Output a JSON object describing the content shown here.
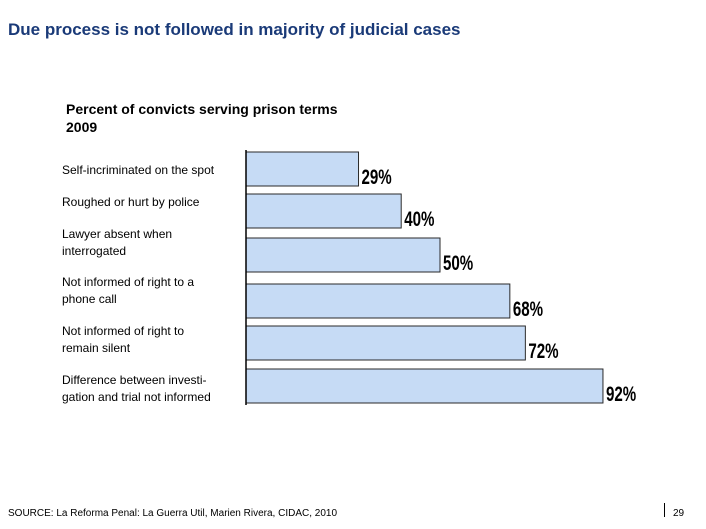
{
  "title": "Due process is not followed in majority of judicial cases",
  "subtitle_lines": [
    "Percent of convicts serving prison terms",
    "2009"
  ],
  "source": "SOURCE: La Reforma Penal: La Guerra Util, Marien Rivera, CIDAC, 2010",
  "page_number": "29",
  "colors": {
    "title": "#1a3a78",
    "bar_fill": "#c6dbf5",
    "bar_stroke": "#2a2a2a"
  },
  "chart_data": {
    "type": "bar",
    "orientation": "horizontal",
    "title": "Percent of convicts serving prison terms 2009",
    "categories": [
      [
        "Self-incriminated on the spot"
      ],
      [
        "Roughed or hurt by police"
      ],
      [
        "Lawyer absent when",
        "interrogated"
      ],
      [
        "Not informed of right to a",
        "phone call"
      ],
      [
        "Not informed of right to",
        "remain silent"
      ],
      [
        "Difference between investi-",
        "gation and trial not informed"
      ]
    ],
    "values": [
      29,
      40,
      50,
      68,
      72,
      92
    ],
    "data_labels": [
      "29%",
      "40%",
      "50%",
      "68%",
      "72%",
      "92%"
    ],
    "xlim": [
      0,
      100
    ],
    "grid": false,
    "legend": "none"
  }
}
